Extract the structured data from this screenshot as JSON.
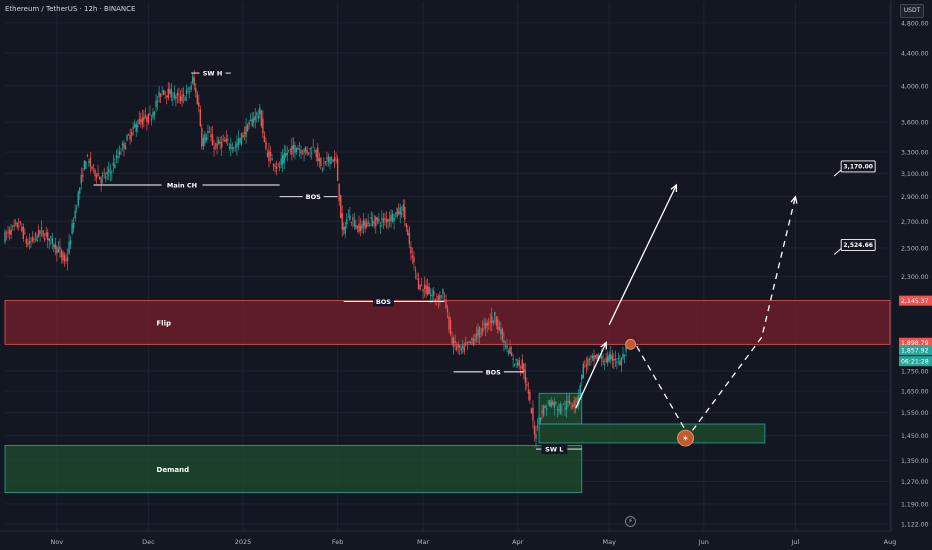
{
  "header": {
    "title": "Ethereum / TetherUS · 12h · BINANCE",
    "currency": "USDT"
  },
  "colors": {
    "background": "#131722",
    "up": "#26a69a",
    "down": "#ef5350",
    "zone_flip": "#7a1f2b",
    "zone_demand": "#1e4b2d",
    "annotation": "#ffffff",
    "target_marker": "#c55a2b"
  },
  "icons": [
    "lightning-icon",
    "arrow-icon"
  ],
  "chart_data": {
    "type": "candlestick",
    "symbol": "ETHUSDT",
    "interval": "12h",
    "y_scale": "log",
    "ylim": [
      1100,
      5100
    ],
    "xlim": [
      "2024-10-15",
      "2025-08-01"
    ],
    "grid": true,
    "x_ticks": [
      {
        "date": "2024-11-01",
        "label": "Nov"
      },
      {
        "date": "2024-12-01",
        "label": "Dec"
      },
      {
        "date": "2025-01-01",
        "label": "2025"
      },
      {
        "date": "2025-02-01",
        "label": "Feb"
      },
      {
        "date": "2025-03-01",
        "label": "Mar"
      },
      {
        "date": "2025-04-01",
        "label": "Apr"
      },
      {
        "date": "2025-05-01",
        "label": "May"
      },
      {
        "date": "2025-06-01",
        "label": "Jun"
      },
      {
        "date": "2025-07-01",
        "label": "Jul"
      },
      {
        "date": "2025-08-01",
        "label": "Aug"
      }
    ],
    "y_ticks": [
      {
        "value": 4800,
        "label": "4,800.00"
      },
      {
        "value": 4400,
        "label": "4,400.00"
      },
      {
        "value": 4000,
        "label": "4,000.00"
      },
      {
        "value": 3600,
        "label": "3,600.00"
      },
      {
        "value": 3300,
        "label": "3,300.00"
      },
      {
        "value": 3100,
        "label": "3,100.00"
      },
      {
        "value": 2900,
        "label": "2,900.00"
      },
      {
        "value": 2700,
        "label": "2,700.00"
      },
      {
        "value": 2500,
        "label": "2,500.00"
      },
      {
        "value": 2300,
        "label": "2,300.00"
      },
      {
        "value": 1750,
        "label": "1,750.00"
      },
      {
        "value": 1650,
        "label": "1,650.00"
      },
      {
        "value": 1550,
        "label": "1,550.00"
      },
      {
        "value": 1450,
        "label": "1,450.00"
      },
      {
        "value": 1350,
        "label": "1,350.00"
      },
      {
        "value": 1270,
        "label": "1,270.00"
      },
      {
        "value": 1190,
        "label": "1,190.00"
      },
      {
        "value": 1122,
        "label": "1,122.00"
      }
    ],
    "price_tags": [
      {
        "value": 2145.37,
        "label": "2,145.37",
        "color": "#ef5350"
      },
      {
        "value": 1898.79,
        "label": "1,898.79",
        "color": "#ef5350"
      },
      {
        "value": 1857.92,
        "label": "1,857.92",
        "color": "#26a69a"
      },
      {
        "value": 1800,
        "label": "06:21:28",
        "color": "#26a69a"
      }
    ],
    "price_path": [
      [
        "2024-10-15",
        2580
      ],
      [
        "2024-10-20",
        2680
      ],
      [
        "2024-10-23",
        2520
      ],
      [
        "2024-10-27",
        2620
      ],
      [
        "2024-10-30",
        2570
      ],
      [
        "2024-11-02",
        2480
      ],
      [
        "2024-11-04",
        2400
      ],
      [
        "2024-11-05",
        2450
      ],
      [
        "2024-11-08",
        2850
      ],
      [
        "2024-11-11",
        3250
      ],
      [
        "2024-11-13",
        3150
      ],
      [
        "2024-11-16",
        3050
      ],
      [
        "2024-11-19",
        3120
      ],
      [
        "2024-11-22",
        3300
      ],
      [
        "2024-11-25",
        3450
      ],
      [
        "2024-11-28",
        3600
      ],
      [
        "2024-12-02",
        3650
      ],
      [
        "2024-12-06",
        3950
      ],
      [
        "2024-12-09",
        3900
      ],
      [
        "2024-12-12",
        3850
      ],
      [
        "2024-12-15",
        3950
      ],
      [
        "2024-12-16",
        4080
      ],
      [
        "2024-12-18",
        3750
      ],
      [
        "2024-12-19",
        3400
      ],
      [
        "2024-12-21",
        3500
      ],
      [
        "2024-12-23",
        3350
      ],
      [
        "2024-12-26",
        3400
      ],
      [
        "2024-12-30",
        3350
      ],
      [
        "2025-01-02",
        3500
      ],
      [
        "2025-01-05",
        3650
      ],
      [
        "2025-01-07",
        3700
      ],
      [
        "2025-01-09",
        3300
      ],
      [
        "2025-01-13",
        3150
      ],
      [
        "2025-01-16",
        3300
      ],
      [
        "2025-01-19",
        3350
      ],
      [
        "2025-01-22",
        3300
      ],
      [
        "2025-01-25",
        3350
      ],
      [
        "2025-01-27",
        3150
      ],
      [
        "2025-01-30",
        3250
      ],
      [
        "2025-02-01",
        3200
      ],
      [
        "2025-02-03",
        2600
      ],
      [
        "2025-02-05",
        2750
      ],
      [
        "2025-02-08",
        2650
      ],
      [
        "2025-02-12",
        2700
      ],
      [
        "2025-02-16",
        2700
      ],
      [
        "2025-02-20",
        2750
      ],
      [
        "2025-02-23",
        2800
      ],
      [
        "2025-02-25",
        2500
      ],
      [
        "2025-02-28",
        2250
      ],
      [
        "2025-03-03",
        2200
      ],
      [
        "2025-03-06",
        2150
      ],
      [
        "2025-03-08",
        2200
      ],
      [
        "2025-03-11",
        1900
      ],
      [
        "2025-03-14",
        1850
      ],
      [
        "2025-03-18",
        1920
      ],
      [
        "2025-03-22",
        2000
      ],
      [
        "2025-03-25",
        2050
      ],
      [
        "2025-03-28",
        1900
      ],
      [
        "2025-03-31",
        1800
      ],
      [
        "2025-04-03",
        1780
      ],
      [
        "2025-04-06",
        1550
      ],
      [
        "2025-04-07",
        1450
      ],
      [
        "2025-04-09",
        1550
      ],
      [
        "2025-04-12",
        1600
      ],
      [
        "2025-04-15",
        1570
      ],
      [
        "2025-04-18",
        1590
      ],
      [
        "2025-04-21",
        1600
      ],
      [
        "2025-04-23",
        1780
      ],
      [
        "2025-04-25",
        1800
      ],
      [
        "2025-04-28",
        1820
      ],
      [
        "2025-04-30",
        1800
      ],
      [
        "2025-05-03",
        1820
      ],
      [
        "2025-05-05",
        1790
      ],
      [
        "2025-05-07",
        1857.92
      ]
    ],
    "zones": [
      {
        "name": "Flip",
        "from": "2024-10-15",
        "to": "2025-08-01",
        "low": 1890,
        "high": 2145.37,
        "color": "#ef5350"
      },
      {
        "name": "Demand",
        "from": "2024-10-15",
        "to": "2025-04-22",
        "low": 1230,
        "high": 1410,
        "color": "#26a69a"
      },
      {
        "name": "",
        "from": "2025-04-08",
        "to": "2025-04-22",
        "low": 1500,
        "high": 1640,
        "color": "#26a69a"
      },
      {
        "name": "",
        "from": "2025-04-08",
        "to": "2025-06-21",
        "low": 1420,
        "high": 1500,
        "color": "#26a69a"
      }
    ],
    "structure_levels": [
      {
        "label": "SW H",
        "from": "2024-12-15",
        "to": "2024-12-28",
        "value": 4150,
        "label_date": "2024-12-22"
      },
      {
        "label": "Main CH",
        "from": "2024-11-13",
        "to": "2025-01-13",
        "value": 3000,
        "label_date": "2024-12-12"
      },
      {
        "label": "BOS",
        "from": "2025-01-13",
        "to": "2025-02-01",
        "value": 2900,
        "label_date": "2025-01-24"
      },
      {
        "label": "BOS",
        "from": "2025-02-03",
        "to": "2025-03-08",
        "value": 2140,
        "label_date": "2025-02-16"
      },
      {
        "label": "BOS",
        "from": "2025-03-11",
        "to": "2025-04-03",
        "value": 1745,
        "label_date": "2025-03-24"
      },
      {
        "label": "SW L",
        "from": "2025-04-07",
        "to": "2025-04-22",
        "value": 1395,
        "label_date": "2025-04-13"
      }
    ],
    "projections": [
      {
        "style": "solid",
        "points": [
          [
            "2025-04-20",
            1570
          ],
          [
            "2025-04-30",
            1900
          ]
        ]
      },
      {
        "style": "solid",
        "points": [
          [
            "2025-05-01",
            2000
          ],
          [
            "2025-05-23",
            3000
          ]
        ]
      },
      {
        "style": "dashed",
        "points": [
          [
            "2025-05-10",
            1880
          ],
          [
            "2025-05-27",
            1450
          ],
          [
            "2025-06-20",
            1930
          ],
          [
            "2025-07-01",
            2900
          ]
        ]
      }
    ],
    "target_labels": [
      {
        "value": 3170,
        "label": "3,170.00",
        "date": "2025-07-16"
      },
      {
        "value": 2524.66,
        "label": "2,524.66",
        "date": "2025-07-16"
      }
    ],
    "markers": [
      {
        "date": "2025-05-08",
        "value": 1890
      },
      {
        "date": "2025-05-26",
        "value": 1440
      }
    ]
  }
}
